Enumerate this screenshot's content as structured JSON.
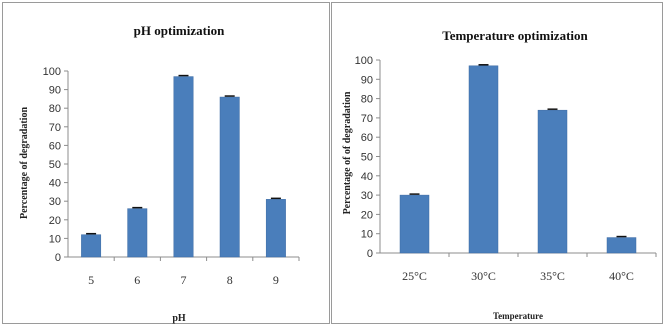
{
  "chart_data": [
    {
      "type": "bar",
      "title": "pH optimization",
      "xlabel": "pH",
      "ylabel": "Percentage of degradation",
      "categories": [
        "5",
        "6",
        "7",
        "8",
        "9"
      ],
      "values": [
        12,
        26,
        97,
        86,
        31
      ],
      "yticks": [
        "0",
        "10",
        "20",
        "30",
        "40",
        "50",
        "60",
        "70",
        "80",
        "90",
        "100"
      ],
      "ylim": [
        0,
        100
      ],
      "bar_color": "#4a7ebb",
      "grid": false,
      "legend": "none"
    },
    {
      "type": "bar",
      "title": "Temperature optimization",
      "xlabel": "Temperature",
      "ylabel": "Percentage of of degradation",
      "categories": [
        "25°C",
        "30°C",
        "35°C",
        "40°C"
      ],
      "values": [
        30,
        97,
        74,
        8
      ],
      "yticks": [
        "0",
        "10",
        "20",
        "30",
        "40",
        "50",
        "60",
        "70",
        "80",
        "90",
        "100"
      ],
      "ylim": [
        0,
        100
      ],
      "bar_color": "#4a7ebb",
      "grid": false,
      "legend": "none"
    }
  ]
}
